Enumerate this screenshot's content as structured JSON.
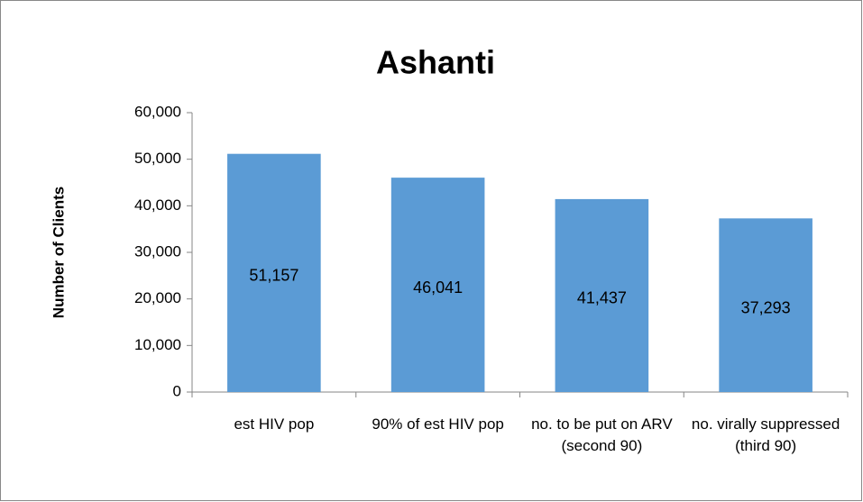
{
  "chart_data": {
    "type": "bar",
    "title": "Ashanti",
    "y_label": "Number of Clients",
    "categories": [
      "est HIV pop",
      "90% of est HIV pop",
      "no. to be put on ARV (second 90)",
      "no. virally suppressed (third 90)"
    ],
    "values": [
      51157,
      46041,
      41437,
      37293
    ],
    "value_labels": [
      "51,157",
      "46,041",
      "41,437",
      "37,293"
    ],
    "color": "#5b9bd5",
    "ylim": [
      0,
      60000
    ],
    "yticks": [
      0,
      {
        "value": 10000,
        "label": "10,000"
      },
      {
        "value": 20000,
        "label": "20,000"
      },
      {
        "value": 30000,
        "label": "30,000"
      },
      {
        "value": 40000,
        "label": "40,000"
      },
      {
        "value": 50000,
        "label": "50,000"
      },
      {
        "value": 60000,
        "label": "60,000"
      }
    ],
    "grid": false
  }
}
